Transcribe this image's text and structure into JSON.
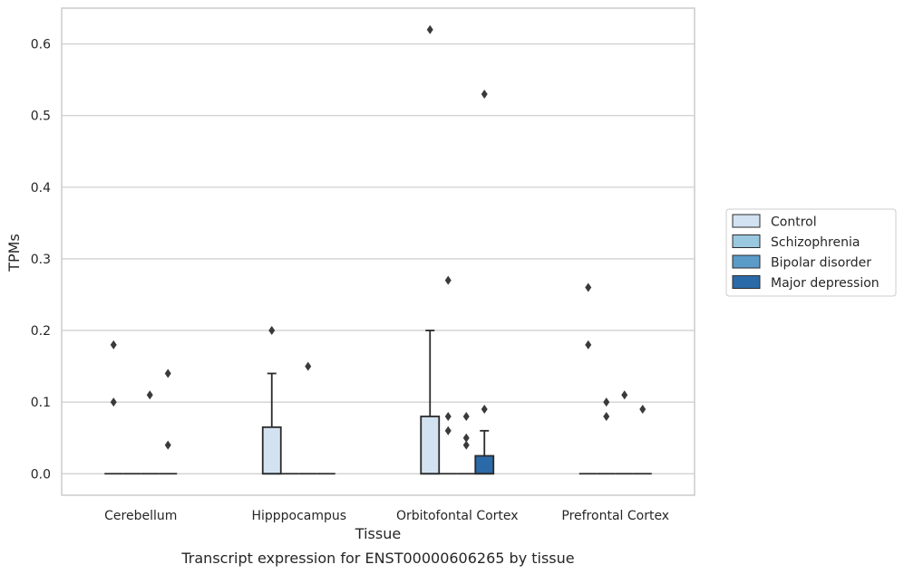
{
  "chart_data": {
    "type": "box",
    "title": "Transcript expression for ENST00000606265 by tissue",
    "xlabel": "Tissue",
    "ylabel": "TPMs",
    "ylim": [
      -0.03,
      0.65
    ],
    "yticks": [
      0.0,
      0.1,
      0.2,
      0.3,
      0.4,
      0.5,
      0.6
    ],
    "ytick_labels": [
      "0.0",
      "0.1",
      "0.2",
      "0.3",
      "0.4",
      "0.5",
      "0.6"
    ],
    "grid": true,
    "legend_position": "right",
    "categories": [
      "Cerebellum",
      "Hipppocampus",
      "Orbitofontal Cortex",
      "Prefrontal Cortex"
    ],
    "series": [
      {
        "name": "Control",
        "color": "#d2e2f1",
        "boxes": [
          {
            "q1": 0.0,
            "median": 0.0,
            "q3": 0.0,
            "whisker_low": 0.0,
            "whisker_high": 0.0,
            "outliers": [
              0.18,
              0.1
            ]
          },
          {
            "q1": 0.0,
            "median": 0.0,
            "q3": 0.065,
            "whisker_low": 0.0,
            "whisker_high": 0.14,
            "outliers": [
              0.2
            ]
          },
          {
            "q1": 0.0,
            "median": 0.0,
            "q3": 0.08,
            "whisker_low": 0.0,
            "whisker_high": 0.2,
            "outliers": [
              0.62
            ]
          },
          {
            "q1": 0.0,
            "median": 0.0,
            "q3": 0.0,
            "whisker_low": 0.0,
            "whisker_high": 0.0,
            "outliers": [
              0.26,
              0.18
            ]
          }
        ]
      },
      {
        "name": "Schizophrenia",
        "color": "#9ac8e0",
        "boxes": [
          {
            "q1": 0.0,
            "median": 0.0,
            "q3": 0.0,
            "whisker_low": 0.0,
            "whisker_high": 0.0,
            "outliers": []
          },
          {
            "q1": 0.0,
            "median": 0.0,
            "q3": 0.0,
            "whisker_low": 0.0,
            "whisker_high": 0.0,
            "outliers": []
          },
          {
            "q1": 0.0,
            "median": 0.0,
            "q3": 0.0,
            "whisker_low": 0.0,
            "whisker_high": 0.0,
            "outliers": [
              0.27,
              0.08,
              0.06
            ]
          },
          {
            "q1": 0.0,
            "median": 0.0,
            "q3": 0.0,
            "whisker_low": 0.0,
            "whisker_high": 0.0,
            "outliers": [
              0.1,
              0.08
            ]
          }
        ]
      },
      {
        "name": "Bipolar disorder",
        "color": "#5b9bc8",
        "boxes": [
          {
            "q1": 0.0,
            "median": 0.0,
            "q3": 0.0,
            "whisker_low": 0.0,
            "whisker_high": 0.0,
            "outliers": [
              0.11
            ]
          },
          {
            "q1": 0.0,
            "median": 0.0,
            "q3": 0.0,
            "whisker_low": 0.0,
            "whisker_high": 0.0,
            "outliers": [
              0.15
            ]
          },
          {
            "q1": 0.0,
            "median": 0.0,
            "q3": 0.0,
            "whisker_low": 0.0,
            "whisker_high": 0.0,
            "outliers": [
              0.08,
              0.05,
              0.04
            ]
          },
          {
            "q1": 0.0,
            "median": 0.0,
            "q3": 0.0,
            "whisker_low": 0.0,
            "whisker_high": 0.0,
            "outliers": [
              0.11
            ]
          }
        ]
      },
      {
        "name": "Major depression",
        "color": "#2b6aa8",
        "boxes": [
          {
            "q1": 0.0,
            "median": 0.0,
            "q3": 0.0,
            "whisker_low": 0.0,
            "whisker_high": 0.0,
            "outliers": [
              0.14,
              0.04
            ]
          },
          {
            "q1": 0.0,
            "median": 0.0,
            "q3": 0.0,
            "whisker_low": 0.0,
            "whisker_high": 0.0,
            "outliers": []
          },
          {
            "q1": 0.0,
            "median": 0.0,
            "q3": 0.025,
            "whisker_low": 0.0,
            "whisker_high": 0.06,
            "outliers": [
              0.53,
              0.09
            ]
          },
          {
            "q1": 0.0,
            "median": 0.0,
            "q3": 0.0,
            "whisker_low": 0.0,
            "whisker_high": 0.0,
            "outliers": [
              0.09
            ]
          }
        ]
      }
    ]
  }
}
